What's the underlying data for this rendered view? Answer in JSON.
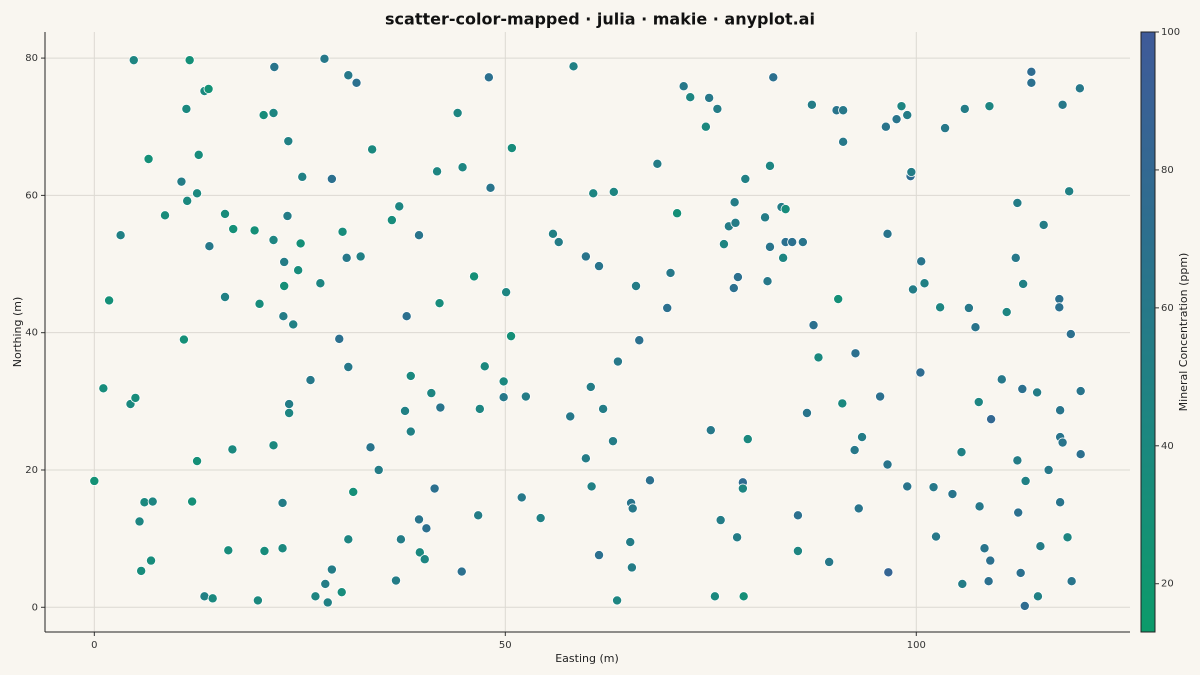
{
  "chart_data": {
    "type": "scatter",
    "title": "scatter-color-mapped · julia · makie · anyplot.ai",
    "xlabel": "Easting (m)",
    "ylabel": "Northing (m)",
    "xlim": [
      -6,
      126
    ],
    "ylim": [
      -3.6,
      83.8
    ],
    "xticks": [
      0,
      50,
      100
    ],
    "yticks": [
      0,
      20,
      40,
      60,
      80
    ],
    "grid": true,
    "colorbar": {
      "label": "Mineral Concentration (ppm)",
      "clim": [
        13,
        100
      ],
      "ticks": [
        20,
        40,
        60,
        80,
        100
      ],
      "colormap": [
        "#0c9b6a",
        "#1c8780",
        "#2d6f8e",
        "#3f5a99"
      ]
    },
    "series": [
      {
        "x": [
          0,
          1.1,
          1.8,
          3.2,
          4.8,
          4.4,
          5,
          5.5,
          5.7,
          6.1,
          6.6,
          7.1,
          6.9,
          8.6,
          10.6,
          10.9,
          11.3,
          11.2,
          11.6,
          11.9,
          12.5,
          12.5,
          12.7,
          13.4,
          13.9,
          13.4,
          14,
          14.4,
          15.9,
          15.9,
          16.3,
          16.8,
          16.9,
          19.5,
          19.9,
          20.1,
          20.6,
          20.7,
          21.8,
          21.8,
          21.8,
          21.9,
          22.9,
          22.9,
          23,
          23.1,
          23.1,
          23.5,
          23.6,
          23.7,
          23.7,
          24.2,
          24.8,
          25.1,
          25.3,
          26.3,
          26.9,
          27.5,
          28,
          28.1,
          28.4,
          28.9,
          28.9,
          29.8,
          30.1,
          30.2,
          30.7,
          30.9,
          30.9,
          30.9,
          31.5,
          31.9,
          32.4,
          33.6,
          33.8,
          34.6,
          36.2,
          36.7,
          37.1,
          37.3,
          37.8,
          38,
          38.5,
          38.5,
          39.5,
          39.5,
          39.6,
          40.2,
          40.4,
          41,
          41.4,
          41.7,
          42,
          42.1,
          44.2,
          44.7,
          44.8,
          46.2,
          46.7,
          46.9,
          47.5,
          48,
          48.2,
          49.8,
          49.8,
          50.1,
          50.7,
          50.8,
          52,
          52.5,
          54.3,
          55.8,
          56.5,
          57.9,
          58.3,
          59.8,
          59.8,
          60.4,
          60.5,
          60.7,
          61.4,
          61.4,
          61.9,
          63.1,
          63.2,
          63.6,
          63.7,
          65.3,
          65.5,
          65.2,
          65.4,
          65.9,
          66.3,
          67.6,
          68.5,
          69.7,
          70.1,
          70.9,
          71.7,
          72.5,
          74.4,
          74.8,
          75,
          75.5,
          75.8,
          76.2,
          76.6,
          77.2,
          77.8,
          77.9,
          78,
          78.2,
          78.3,
          78.9,
          78.9,
          79,
          79.2,
          79.5,
          81.6,
          81.9,
          82.2,
          82.2,
          82.6,
          83.6,
          84.1,
          84.1,
          83.8,
          84.9,
          85.6,
          85.6,
          86.2,
          86.7,
          87.3,
          87.5,
          88.1,
          89.4,
          90.3,
          90.5,
          91,
          91.1,
          91.1,
          92.5,
          92.6,
          93,
          93.4,
          95.6,
          96.3,
          96.5,
          96.5,
          96.6,
          97.6,
          98.2,
          98.9,
          98.9,
          99.3,
          99.4,
          99.6,
          100.5,
          100.6,
          101,
          102.1,
          102.4,
          102.9,
          103.5,
          104.4,
          105.5,
          105.6,
          105.9,
          106.4,
          107.2,
          107.6,
          107.7,
          108.3,
          108.8,
          109,
          108.9,
          109.1,
          110.4,
          111,
          112.1,
          112.3,
          112.3,
          112.4,
          112.7,
          112.9,
          113,
          113.2,
          113.3,
          114,
          114,
          114.7,
          114.8,
          115.1,
          115.5,
          116.1,
          117.4,
          117.4,
          117.5,
          117.5,
          117.5,
          117.8,
          117.8,
          118.4,
          118.6,
          118.8,
          118.9,
          119.9,
          120,
          120
        ],
        "values": [
          18.4,
          31.9,
          44.7,
          54.2,
          79.7,
          29.6,
          30.5,
          12.5,
          5.3,
          15.3,
          65.3,
          15.4,
          6.8,
          57.1,
          62,
          39,
          59.2,
          72.6,
          79.7,
          15.4,
          21.3,
          60.3,
          65.9,
          75.2,
          75.5,
          1.6,
          52.6,
          1.3,
          45.2,
          57.3,
          8.3,
          23,
          55.1,
          54.9,
          1,
          44.2,
          71.7,
          8.2,
          72,
          53.5,
          23.6,
          78.7,
          15.2,
          8.6,
          42.4,
          50.3,
          46.8,
          57,
          67.9,
          29.6,
          28.3,
          41.2,
          49.1,
          53,
          62.7,
          33.1,
          1.6,
          47.2,
          79.9,
          3.4,
          0.7,
          5.5,
          62.4,
          39.1,
          2.2,
          54.7,
          50.9,
          77.5,
          35,
          9.9,
          16.8,
          76.4,
          51.1,
          23.3,
          66.7,
          20,
          56.4,
          3.9,
          58.4,
          9.9,
          28.6,
          42.4,
          33.7,
          25.6,
          12.8,
          54.2,
          8,
          7,
          11.5,
          31.2,
          17.3,
          63.5,
          44.3,
          29.1,
          72,
          5.2,
          64.1,
          48.2,
          13.4,
          28.9,
          35.1,
          77.2,
          61.1,
          32.9,
          30.6,
          45.9,
          39.5,
          66.9,
          16,
          30.7,
          13,
          54.4,
          53.2,
          27.8,
          78.8,
          21.7,
          51.1,
          32.1,
          17.6,
          60.3,
          49.7,
          7.6,
          28.9,
          24.2,
          60.5,
          1,
          35.8,
          15.2,
          14.4,
          9.5,
          5.8,
          46.8,
          38.9,
          18.5,
          64.6,
          43.6,
          48.7,
          57.4,
          75.9,
          74.3,
          70,
          74.2,
          25.8,
          1.6,
          72.6,
          12.7,
          52.9,
          55.5,
          46.5,
          59,
          56,
          10.2,
          48.1,
          18.2,
          17.3,
          1.6,
          62.4,
          24.5,
          56.8,
          47.5,
          64.3,
          52.5,
          77.2,
          58.3,
          58,
          53.2,
          50.9,
          53.2,
          13.4,
          8.2,
          53.2,
          28.3,
          73.2,
          41.1,
          36.4,
          6.6,
          72.4,
          44.9,
          29.7,
          72.4,
          67.8,
          22.9,
          37,
          14.4,
          24.8,
          30.7,
          70,
          54.4,
          20.8,
          5.1,
          71.1,
          73,
          71.7,
          17.6,
          62.8,
          63.4,
          46.3,
          34.2,
          50.4,
          47.2,
          17.5,
          10.3,
          43.7,
          69.8,
          16.5,
          22.6,
          3.4,
          72.6,
          43.6,
          40.8,
          29.9,
          14.7,
          8.6,
          3.8,
          6.8,
          73,
          27.4,
          33.2,
          43,
          50.9,
          58.9,
          21.4,
          13.8,
          5,
          31.8,
          47.1,
          0.2,
          18.4,
          78,
          76.4,
          31.3,
          1.6,
          8.9,
          55.7,
          20,
          44.9,
          43.7,
          15.3,
          24.8,
          28.7,
          24,
          73.2,
          10.2,
          60.6,
          39.8,
          3.8,
          75.6,
          31.5,
          22.3
        ],
        "color_values": [
          28,
          35,
          30,
          50,
          45,
          40,
          35,
          45,
          35,
          40,
          30,
          45,
          35,
          35,
          55,
          30,
          40,
          40,
          30,
          30,
          30,
          40,
          35,
          40,
          28,
          50,
          60,
          40,
          50,
          35,
          35,
          40,
          30,
          30,
          40,
          35,
          35,
          35,
          45,
          45,
          40,
          65,
          55,
          40,
          55,
          55,
          30,
          55,
          50,
          55,
          45,
          50,
          35,
          30,
          50,
          60,
          45,
          45,
          60,
          55,
          50,
          55,
          70,
          70,
          35,
          35,
          60,
          60,
          60,
          45,
          30,
          70,
          50,
          65,
          40,
          55,
          35,
          55,
          45,
          55,
          50,
          70,
          40,
          50,
          65,
          65,
          40,
          45,
          70,
          45,
          70,
          45,
          35,
          65,
          45,
          70,
          45,
          30,
          55,
          45,
          40,
          70,
          65,
          40,
          60,
          45,
          30,
          35,
          60,
          55,
          50,
          50,
          55,
          60,
          50,
          55,
          65,
          55,
          50,
          45,
          65,
          70,
          55,
          55,
          45,
          45,
          60,
          65,
          60,
          55,
          55,
          55,
          70,
          70,
          55,
          70,
          60,
          30,
          60,
          45,
          40,
          60,
          60,
          40,
          55,
          55,
          45,
          55,
          70,
          55,
          55,
          55,
          70,
          75,
          45,
          30,
          50,
          40,
          55,
          60,
          45,
          65,
          70,
          55,
          35,
          70,
          45,
          70,
          70,
          45,
          65,
          65,
          55,
          70,
          40,
          60,
          65,
          30,
          40,
          60,
          60,
          60,
          70,
          65,
          55,
          70,
          65,
          65,
          65,
          85,
          65,
          45,
          55,
          65,
          75,
          55,
          55,
          75,
          65,
          50,
          60,
          60,
          45,
          60,
          65,
          50,
          55,
          55,
          60,
          65,
          45,
          60,
          65,
          70,
          70,
          45,
          80,
          60,
          45,
          60,
          55,
          55,
          70,
          70,
          70,
          50,
          75,
          50,
          75,
          70,
          55,
          50,
          55,
          55,
          60,
          70,
          70,
          65,
          65,
          65,
          65,
          60,
          45,
          50,
          70,
          65,
          60,
          65,
          70
        ]
      }
    ]
  }
}
